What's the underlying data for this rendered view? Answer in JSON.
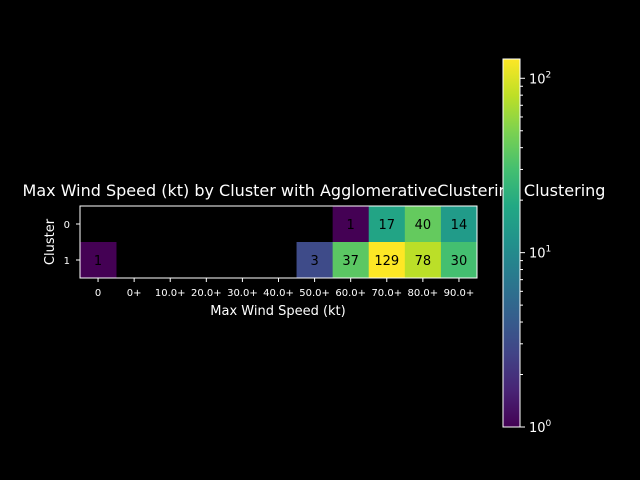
{
  "chart_data": {
    "type": "heatmap",
    "title": "Max Wind Speed (kt) by Cluster with AgglomerativeClustering Clustering",
    "xlabel": "Max Wind Speed (kt)",
    "ylabel": "Cluster",
    "x_categories": [
      "0",
      "0+",
      "10.0+",
      "20.0+",
      "30.0+",
      "40.0+",
      "50.0+",
      "60.0+",
      "70.0+",
      "80.0+",
      "90.0+"
    ],
    "y_categories": [
      "0",
      "1"
    ],
    "values": [
      [
        null,
        null,
        null,
        null,
        null,
        null,
        null,
        1,
        17,
        40,
        14
      ],
      [
        1,
        null,
        null,
        null,
        null,
        null,
        3,
        37,
        129,
        78,
        30
      ]
    ],
    "colorbar": {
      "scale": "log",
      "range": [
        1,
        129
      ],
      "ticks": [
        {
          "value": 1,
          "base": "10",
          "exp": "0"
        },
        {
          "value": 10,
          "base": "10",
          "exp": "1"
        },
        {
          "value": 100,
          "base": "10",
          "exp": "2"
        }
      ]
    },
    "colormap": "viridis"
  }
}
